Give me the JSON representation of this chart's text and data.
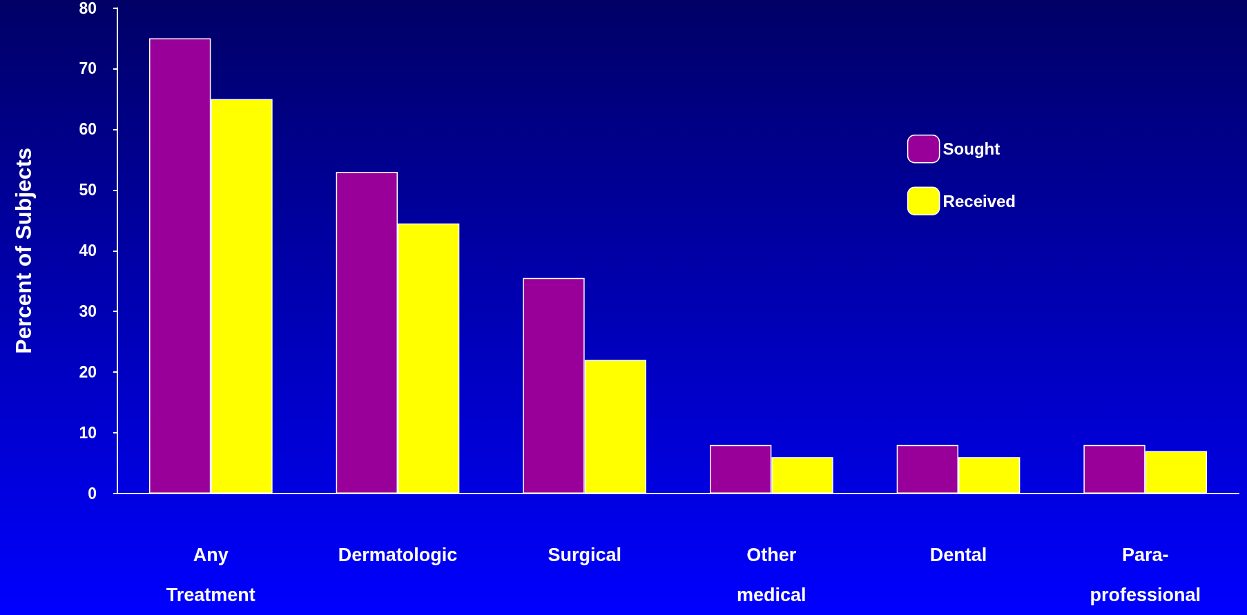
{
  "chart_data": {
    "type": "bar",
    "ylabel": "Percent of Subjects",
    "categories": [
      "Any\nTreatment",
      "Dermatologic",
      "Surgical",
      "Other\nmedical",
      "Dental",
      "Para-\nprofessional"
    ],
    "series": [
      {
        "name": "Sought",
        "color": "#990099",
        "values": [
          75,
          53,
          35.5,
          8,
          8,
          8
        ]
      },
      {
        "name": "Received",
        "color": "#ffff00",
        "values": [
          65,
          44.5,
          22,
          6,
          6,
          7
        ]
      }
    ],
    "ylim": [
      0,
      80
    ],
    "yticks": [
      0,
      10,
      20,
      30,
      40,
      50,
      60,
      70,
      80
    ],
    "grid": false,
    "legend": "top right"
  }
}
